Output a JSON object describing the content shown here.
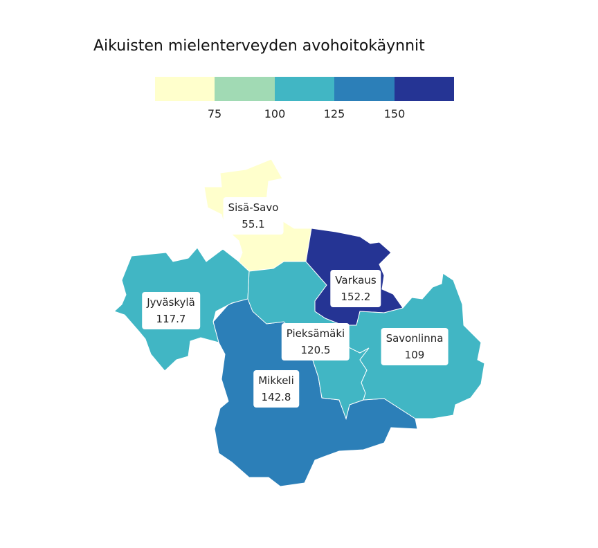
{
  "title": "Aikuisten mielenterveyden avohoitokäynnit",
  "legend": {
    "colors": [
      "#ffffcc",
      "#a1dab4",
      "#41b6c4",
      "#2c7fb8",
      "#253494"
    ],
    "ticks": [
      "75",
      "100",
      "125",
      "150"
    ]
  },
  "regions": [
    {
      "name": "Sisä-Savo",
      "value": "55.1",
      "color": "#ffffcc"
    },
    {
      "name": "Varkaus",
      "value": "152.2",
      "color": "#253494"
    },
    {
      "name": "Jyväskylä",
      "value": "117.7",
      "color": "#41b6c4"
    },
    {
      "name": "Pieksämäki",
      "value": "120.5",
      "color": "#41b6c4"
    },
    {
      "name": "Savonlinna",
      "value": "109",
      "color": "#41b6c4"
    },
    {
      "name": "Mikkeli",
      "value": "142.8",
      "color": "#2c7fb8"
    }
  ]
}
